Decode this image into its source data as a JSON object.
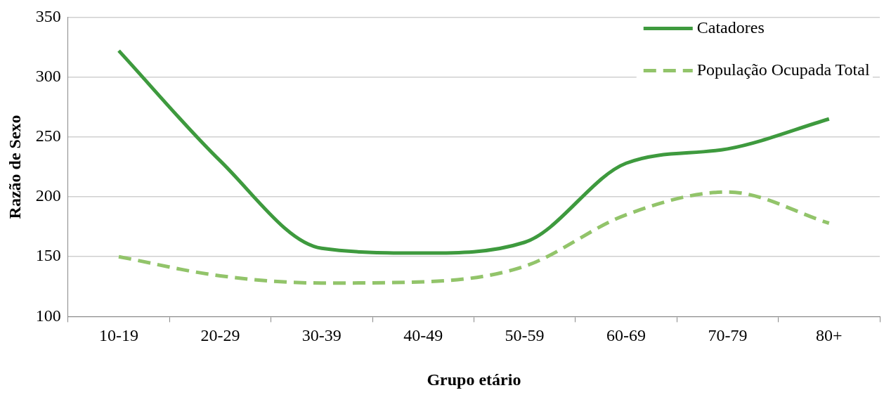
{
  "chart_data": {
    "type": "line",
    "xlabel": "Grupo etário",
    "ylabel": "Razão de Sexo",
    "categories": [
      "10-19",
      "20-29",
      "30-39",
      "40-49",
      "50-59",
      "60-69",
      "70-79",
      "80+"
    ],
    "series": [
      {
        "name": "Catadores",
        "color": "#3e9a3e",
        "line_style": "solid",
        "values": [
          322,
          230,
          157,
          153,
          162,
          228,
          240,
          265
        ]
      },
      {
        "name": "População Ocupada Total",
        "color": "#92c46a",
        "line_style": "dashed",
        "values": [
          150,
          134,
          128,
          129,
          142,
          185,
          204,
          178
        ]
      }
    ],
    "ylim": [
      100,
      350
    ],
    "yticks": [
      100,
      150,
      200,
      250,
      300,
      350
    ],
    "grid": "y",
    "legend": "top right",
    "marker": "none"
  }
}
